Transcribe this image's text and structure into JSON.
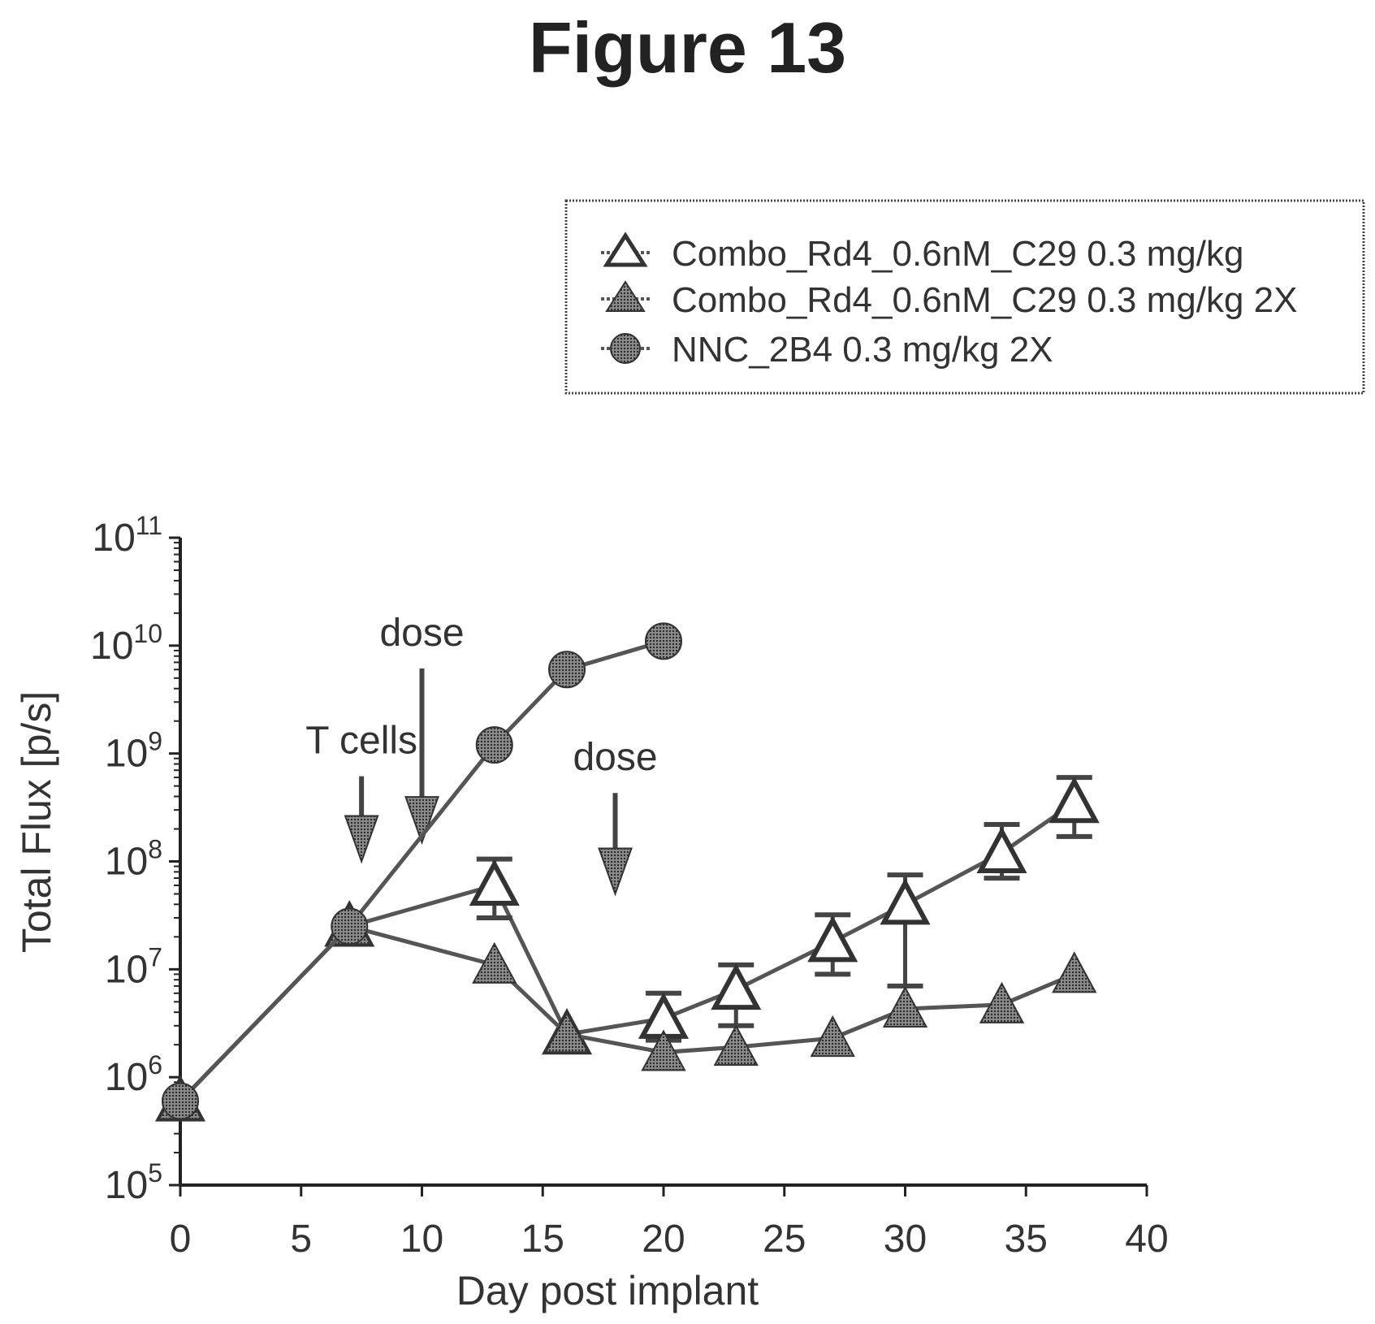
{
  "figure_title": "Figure 13",
  "colors": {
    "ink": "#222222",
    "marker_fill": "#555555",
    "open_fill": "#ffffff"
  },
  "chart_data": {
    "type": "line",
    "xlabel": "Day post implant",
    "ylabel": "Total Flux [p/s]",
    "xlim": [
      0,
      40
    ],
    "ylim": [
      100000,
      100000000000
    ],
    "yscale": "log",
    "x_ticks": [
      0,
      5,
      10,
      15,
      20,
      25,
      30,
      35,
      40
    ],
    "y_ticks": [
      {
        "base": "10",
        "exp": "5",
        "value": 100000
      },
      {
        "base": "10",
        "exp": "6",
        "value": 1000000
      },
      {
        "base": "10",
        "exp": "7",
        "value": 10000000
      },
      {
        "base": "10",
        "exp": "8",
        "value": 100000000
      },
      {
        "base": "10",
        "exp": "9",
        "value": 1000000000
      },
      {
        "base": "10",
        "exp": "10",
        "value": 10000000000
      },
      {
        "base": "10",
        "exp": "11",
        "value": 100000000000
      }
    ],
    "legend_position": "top-right",
    "series": [
      {
        "name": "Combo_Rd4_0.6nM_C29 0.3 mg/kg",
        "marker": "open-triangle",
        "x": [
          0,
          7,
          13,
          16,
          20,
          23,
          27,
          30,
          34,
          37
        ],
        "y": [
          600000,
          25000000,
          60000000,
          2500000,
          3500000,
          6500000,
          18000000,
          40000000,
          120000000,
          350000000
        ],
        "err_low": [
          null,
          null,
          30000000,
          null,
          2200000,
          3000000,
          9000000,
          7000000,
          70000000,
          170000000
        ],
        "err_high": [
          null,
          null,
          105000000,
          null,
          6000000,
          11000000,
          32000000,
          75000000,
          220000000,
          600000000
        ]
      },
      {
        "name": "Combo_Rd4_0.6nM_C29 0.3 mg/kg 2X",
        "marker": "filled-triangle",
        "x": [
          0,
          7,
          13,
          16,
          20,
          23,
          27,
          30,
          34,
          37
        ],
        "y": [
          600000,
          25000000,
          11000000,
          2500000,
          1700000,
          1900000,
          2300000,
          4300000,
          4700000,
          9000000
        ],
        "err_low": [],
        "err_high": []
      },
      {
        "name": "NNC_2B4 0.3 mg/kg 2X",
        "marker": "filled-circle",
        "x": [
          0,
          7,
          13,
          16,
          20
        ],
        "y": [
          600000,
          25000000,
          1200000000,
          6000000000,
          11000000000
        ],
        "err_low": [],
        "err_high": []
      }
    ],
    "annotations": [
      {
        "text": "T cells",
        "x": 7.5,
        "y": 1000000000,
        "arrow_to": 100000000
      },
      {
        "text": "dose",
        "x": 10,
        "y": 10000000000,
        "arrow_to": 150000000
      },
      {
        "text": "dose",
        "x": 18,
        "y": 700000000,
        "arrow_to": 50000000
      }
    ]
  }
}
